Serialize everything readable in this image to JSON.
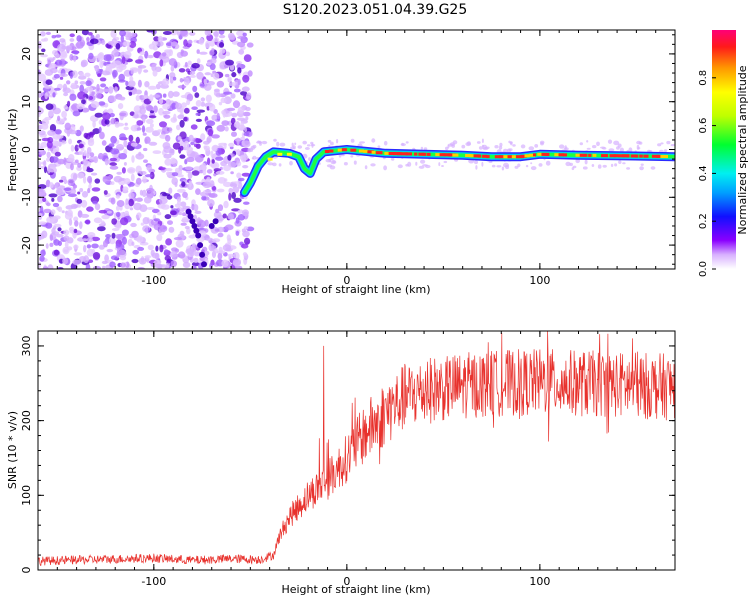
{
  "title": "S120.2023.051.04.39.G25",
  "chart_data": [
    {
      "type": "heatmap",
      "xlabel": "Height of straight line (km)",
      "ylabel": "Frequency (Hz)",
      "xlim": [
        -160,
        170
      ],
      "ylim": [
        -25,
        25
      ],
      "x_ticks": [
        -100,
        0,
        100
      ],
      "y_ticks": [
        -20,
        -10,
        0,
        10,
        20
      ],
      "colorbar": {
        "label": "Normalized spectral amplitude",
        "range": [
          0,
          1
        ],
        "ticks": [
          "0.0",
          "0.2",
          "0.4",
          "0.6",
          "0.8"
        ]
      },
      "noise_region_x": [
        -160,
        -50
      ],
      "signal_track": [
        {
          "x": -53,
          "f": -9
        },
        {
          "x": -50,
          "f": -7
        },
        {
          "x": -46,
          "f": -3.5
        },
        {
          "x": -42,
          "f": -1.5
        },
        {
          "x": -38,
          "f": -0.5
        },
        {
          "x": -30,
          "f": -0.8
        },
        {
          "x": -25,
          "f": -1.5
        },
        {
          "x": -22,
          "f": -4
        },
        {
          "x": -19,
          "f": -5
        },
        {
          "x": -16,
          "f": -2
        },
        {
          "x": -12,
          "f": -0.5
        },
        {
          "x": 0,
          "f": 0
        },
        {
          "x": 20,
          "f": -0.8
        },
        {
          "x": 40,
          "f": -1
        },
        {
          "x": 60,
          "f": -1.2
        },
        {
          "x": 75,
          "f": -1.5
        },
        {
          "x": 90,
          "f": -1.5
        },
        {
          "x": 100,
          "f": -1
        },
        {
          "x": 120,
          "f": -1.2
        },
        {
          "x": 140,
          "f": -1.3
        },
        {
          "x": 170,
          "f": -1.5
        }
      ]
    },
    {
      "type": "line",
      "xlabel": "Height of straight line (km)",
      "ylabel": "SNR (10 * v/v)",
      "xlim": [
        -160,
        170
      ],
      "ylim": [
        0,
        320
      ],
      "x_ticks": [
        -100,
        0,
        100
      ],
      "y_ticks": [
        0,
        100,
        200,
        300
      ],
      "color": "#e8322d",
      "envelope": [
        {
          "x": -160,
          "y": 12
        },
        {
          "x": -130,
          "y": 14
        },
        {
          "x": -100,
          "y": 16
        },
        {
          "x": -80,
          "y": 13
        },
        {
          "x": -60,
          "y": 15
        },
        {
          "x": -45,
          "y": 14
        },
        {
          "x": -38,
          "y": 20
        },
        {
          "x": -35,
          "y": 45
        },
        {
          "x": -30,
          "y": 70
        },
        {
          "x": -20,
          "y": 100
        },
        {
          "x": -10,
          "y": 120
        },
        {
          "x": 0,
          "y": 150
        },
        {
          "x": 10,
          "y": 185
        },
        {
          "x": 20,
          "y": 210
        },
        {
          "x": 30,
          "y": 232
        },
        {
          "x": 45,
          "y": 242
        },
        {
          "x": 60,
          "y": 247
        },
        {
          "x": 80,
          "y": 250
        },
        {
          "x": 100,
          "y": 252
        },
        {
          "x": 120,
          "y": 250
        },
        {
          "x": 140,
          "y": 248
        },
        {
          "x": 160,
          "y": 246
        },
        {
          "x": 170,
          "y": 245
        }
      ],
      "spikes": [
        {
          "x": -12,
          "y": 300
        },
        {
          "x": 104,
          "y": 320
        },
        {
          "x": 104.5,
          "y": 172
        }
      ]
    }
  ]
}
